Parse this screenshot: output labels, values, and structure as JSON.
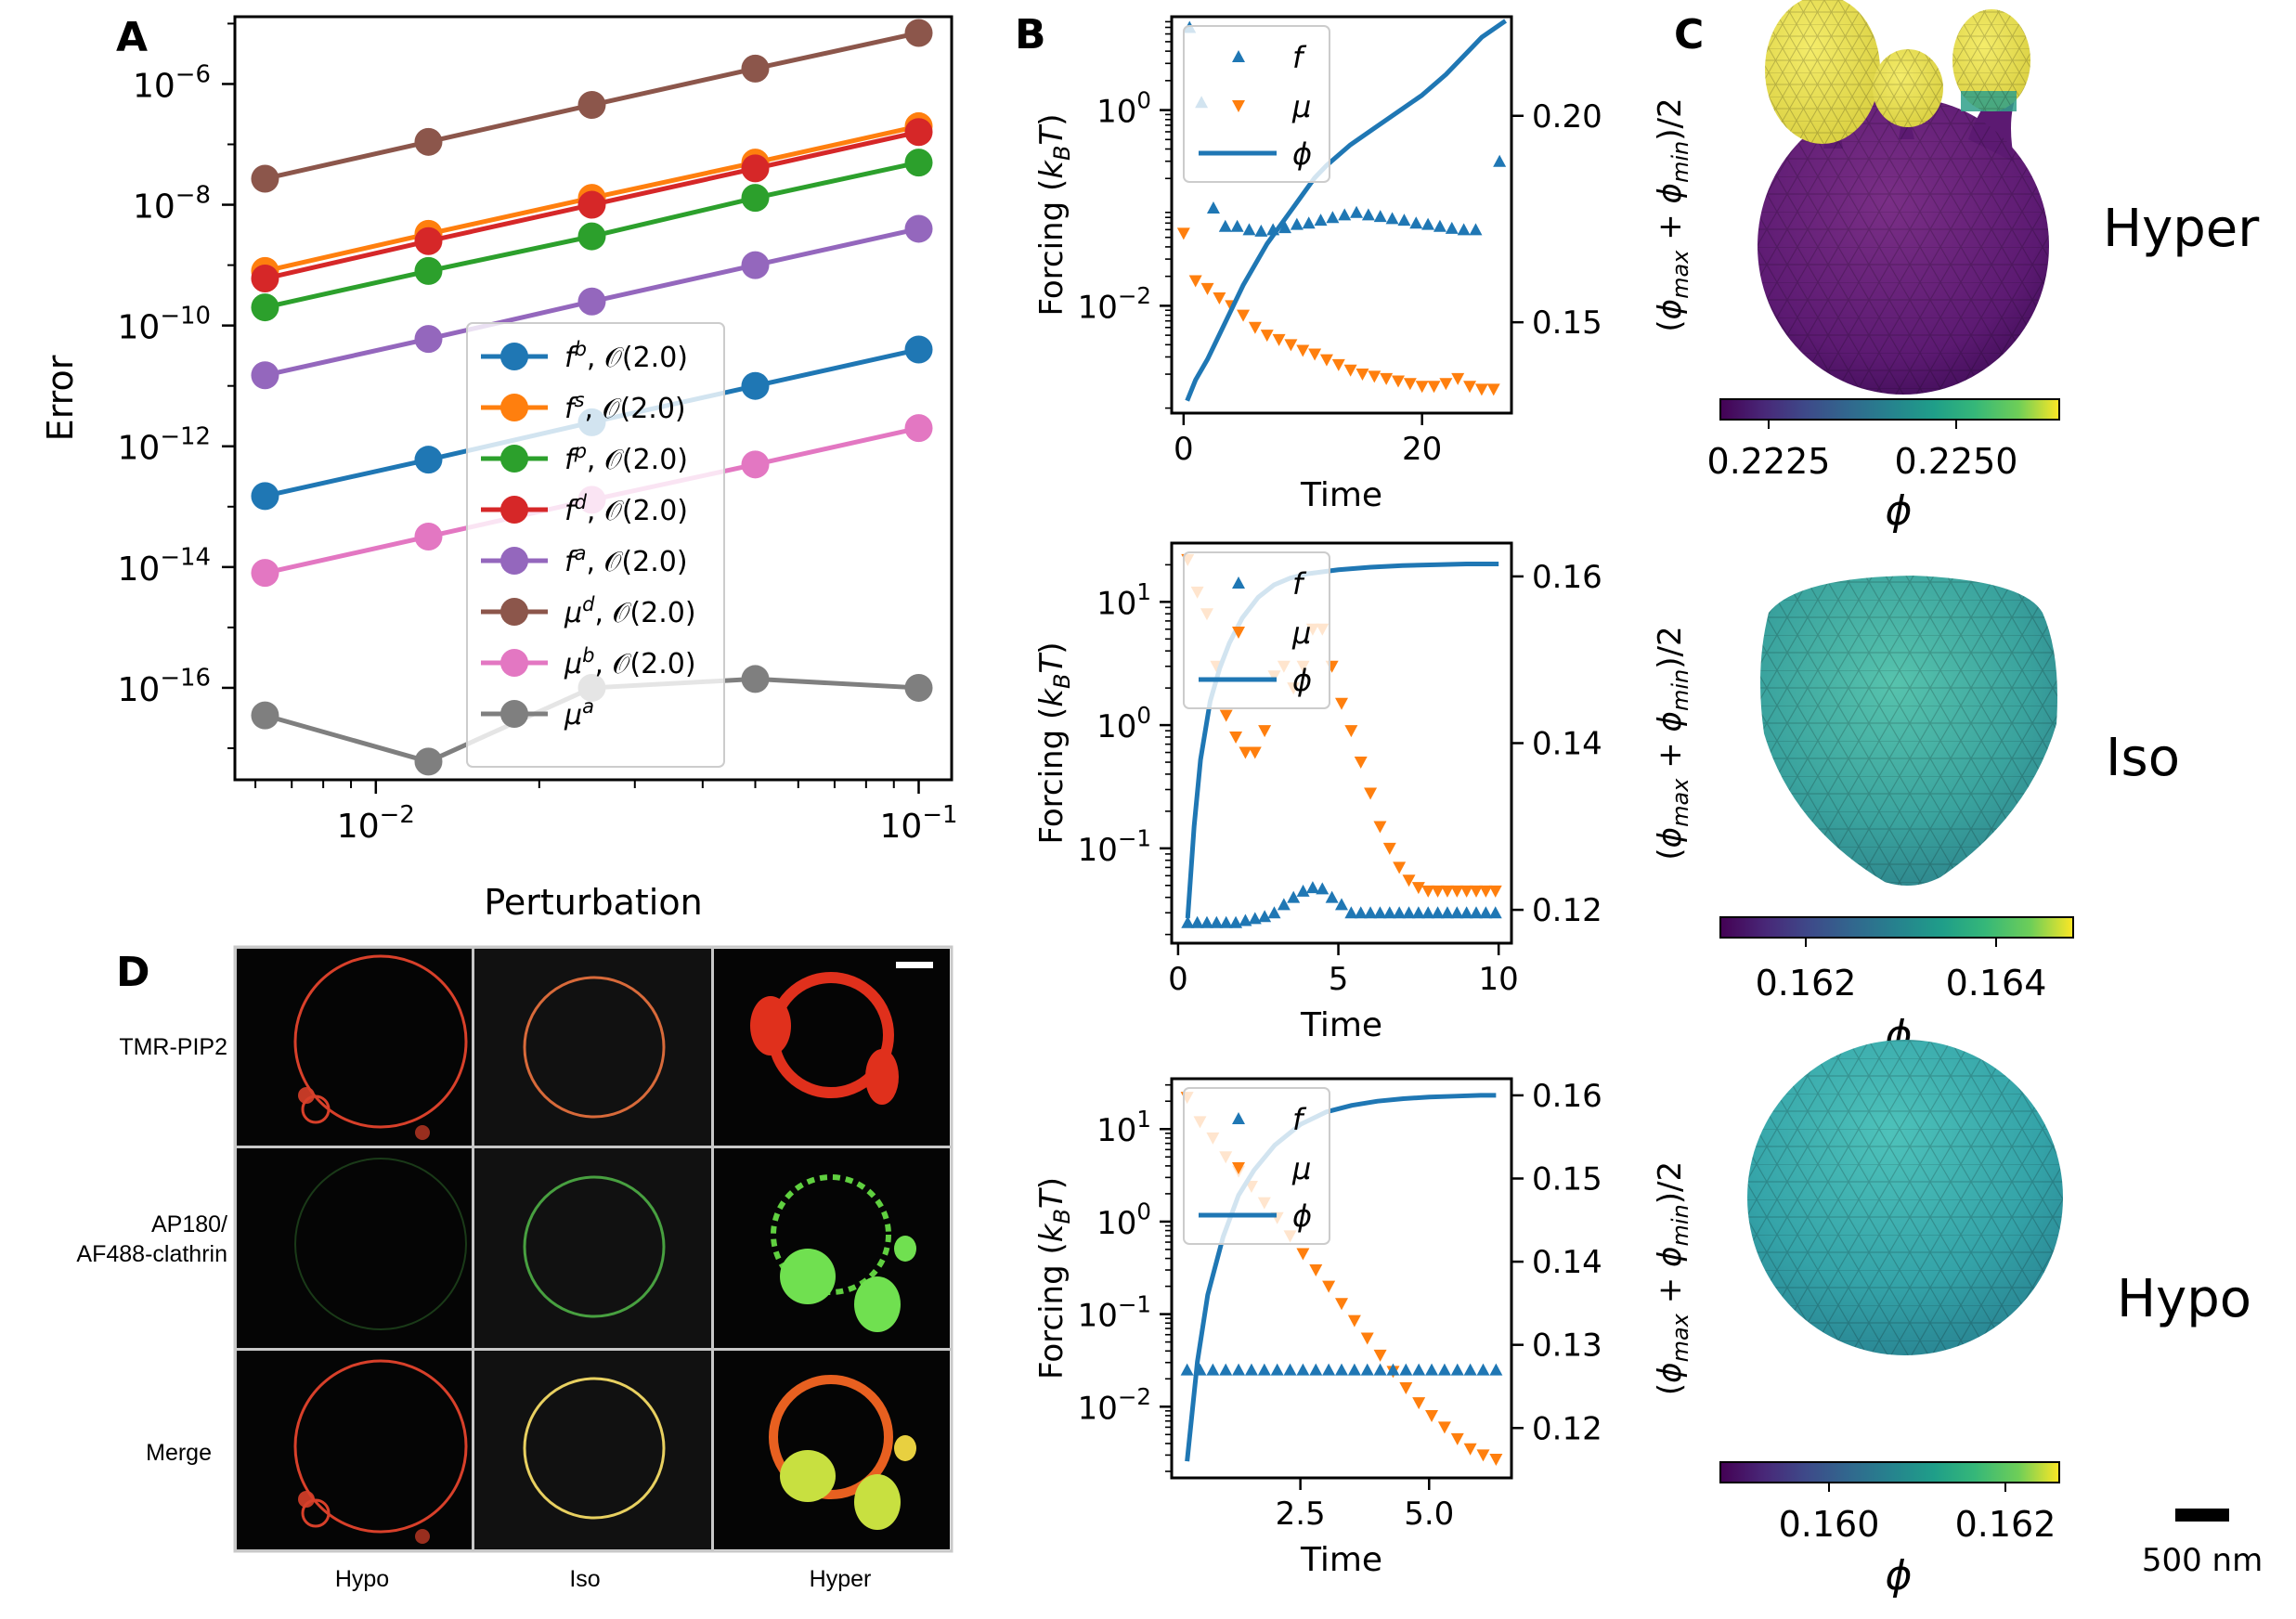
{
  "panel_labels": {
    "A": "A",
    "B": "B",
    "C": "C",
    "D": "D"
  },
  "colors": {
    "blue": "#1f77b4",
    "orange": "#ff7f0e",
    "green": "#2ca02c",
    "red": "#d62728",
    "purple": "#9467bd",
    "brown": "#8c564b",
    "pink": "#e377c2",
    "gray": "#7f7f7f"
  },
  "chart_data": [
    {
      "id": "A",
      "type": "line",
      "scale": "log-log",
      "xlabel": "Perturbation",
      "ylabel": "Error",
      "xlim": [
        0.0055,
        0.115
      ],
      "ylim": [
        3e-18,
        1.3e-05
      ],
      "x": [
        0.00625,
        0.0125,
        0.025,
        0.05,
        0.1
      ],
      "xticks": [
        0.01,
        0.1
      ],
      "xtick_labels": [
        "10^-2",
        "10^-1"
      ],
      "yticks": [
        1e-16,
        1e-14,
        1e-12,
        1e-10,
        1e-08,
        1e-06
      ],
      "ytick_labels": [
        "10^-16",
        "10^-14",
        "10^-12",
        "10^-10",
        "10^-8",
        "10^-6"
      ],
      "legend_position": "center-right",
      "series": [
        {
          "name": "f^b, O(2.0)",
          "sym": "f",
          "sup": "b",
          "order": "𝒪(2.0)",
          "color": "#1f77b4",
          "values": [
            1.5e-13,
            6e-13,
            2.5e-12,
            1e-11,
            4e-11
          ]
        },
        {
          "name": "f^s, O(2.0)",
          "sym": "f",
          "sup": "s",
          "order": "𝒪(2.0)",
          "color": "#ff7f0e",
          "values": [
            8e-10,
            3.3e-09,
            1.3e-08,
            5e-08,
            2e-07
          ]
        },
        {
          "name": "f^p, O(2.0)",
          "sym": "f",
          "sup": "p",
          "order": "𝒪(2.0)",
          "color": "#2ca02c",
          "values": [
            2e-10,
            8e-10,
            3e-09,
            1.3e-08,
            5e-08
          ]
        },
        {
          "name": "f^d, O(2.0)",
          "sym": "f",
          "sup": "d",
          "order": "𝒪(2.0)",
          "color": "#d62728",
          "values": [
            6e-10,
            2.5e-09,
            1e-08,
            4e-08,
            1.6e-07
          ]
        },
        {
          "name": "f^a, O(2.0)",
          "sym": "f",
          "sup": "a",
          "order": "𝒪(2.0)",
          "color": "#9467bd",
          "values": [
            1.5e-11,
            6e-11,
            2.5e-10,
            1e-09,
            4e-09
          ]
        },
        {
          "name": "μ^d, O(2.0)",
          "sym": "μ",
          "sup": "d",
          "order": "𝒪(2.0)",
          "color": "#8c564b",
          "values": [
            2.7e-08,
            1.1e-07,
            4.5e-07,
            1.8e-06,
            7e-06
          ]
        },
        {
          "name": "μ^b, O(2.0)",
          "sym": "μ",
          "sup": "b",
          "order": "𝒪(2.0)",
          "color": "#e377c2",
          "values": [
            8e-15,
            3.2e-14,
            1.3e-13,
            5e-13,
            2e-12
          ]
        },
        {
          "name": "μ^a",
          "sym": "μ",
          "sup": "a",
          "order": "",
          "color": "#7f7f7f",
          "values": [
            3.5e-17,
            6e-18,
            1e-16,
            1.4e-16,
            1e-16
          ]
        }
      ]
    },
    {
      "id": "B1",
      "type": "scatter+line",
      "xlabel": "Time",
      "ylabel": "Forcing (k_BT)",
      "ylabel_right": "(ϕ_max + ϕ_min)/2",
      "xlim": [
        -1,
        27.5
      ],
      "ylim": [
        0.0008,
        9
      ],
      "ylim_right": [
        0.128,
        0.224
      ],
      "xticks": [
        0,
        20
      ],
      "yticks": [
        0.01,
        1
      ],
      "ytick_labels": [
        "10^-2",
        "10^0"
      ],
      "yticks_right": [
        0.15,
        0.2
      ],
      "ytick_labels_right": [
        "0.15",
        "0.20"
      ],
      "legend": [
        "f",
        "μ",
        "ϕ"
      ],
      "f": {
        "x": [
          0.5,
          1.5,
          2.5,
          3.5,
          4.5,
          5.5,
          6.5,
          7.5,
          8.5,
          9.5,
          10.5,
          11.5,
          12.5,
          13.5,
          14.5,
          15.5,
          16.5,
          17.5,
          18.5,
          19.5,
          20.5,
          21.5,
          22.5,
          23.5,
          24.5,
          26.5
        ],
        "y": [
          7,
          1.2,
          0.1,
          0.065,
          0.065,
          0.06,
          0.058,
          0.06,
          0.063,
          0.068,
          0.07,
          0.075,
          0.08,
          0.085,
          0.09,
          0.085,
          0.082,
          0.078,
          0.075,
          0.07,
          0.068,
          0.065,
          0.062,
          0.06,
          0.06,
          0.3
        ]
      },
      "mu": {
        "x": [
          0,
          1,
          2,
          3,
          4,
          5,
          6,
          7,
          8,
          9,
          10,
          11,
          12,
          13,
          14,
          15,
          16,
          17,
          18,
          19,
          20,
          21,
          22,
          23,
          24,
          25,
          26
        ],
        "y": [
          0.055,
          0.018,
          0.015,
          0.012,
          0.01,
          0.008,
          0.006,
          0.005,
          0.0045,
          0.004,
          0.0035,
          0.0032,
          0.0028,
          0.0025,
          0.0022,
          0.002,
          0.0019,
          0.0018,
          0.0017,
          0.0016,
          0.0015,
          0.0015,
          0.0016,
          0.0018,
          0.0015,
          0.0014,
          0.0014
        ]
      },
      "phi": {
        "x": [
          0.3,
          1,
          2,
          3,
          4,
          5,
          6,
          7,
          8,
          9,
          10,
          11,
          12,
          14,
          16,
          18,
          20,
          22,
          24,
          25,
          26,
          27
        ],
        "y": [
          0.131,
          0.136,
          0.141,
          0.147,
          0.153,
          0.159,
          0.164,
          0.169,
          0.173,
          0.177,
          0.181,
          0.185,
          0.188,
          0.193,
          0.197,
          0.201,
          0.205,
          0.21,
          0.216,
          0.219,
          0.221,
          0.223
        ]
      }
    },
    {
      "id": "B2",
      "type": "scatter+line",
      "xlabel": "Time",
      "ylabel": "Forcing (k_BT)",
      "ylabel_right": "(ϕ_max + ϕ_min)/2",
      "xlim": [
        -0.2,
        10.4
      ],
      "ylim": [
        0.017,
        30
      ],
      "ylim_right": [
        0.116,
        0.164
      ],
      "xticks": [
        0,
        5,
        10
      ],
      "yticks": [
        0.1,
        1,
        10
      ],
      "ytick_labels": [
        "10^-1",
        "10^0",
        "10^1"
      ],
      "yticks_right": [
        0.12,
        0.14,
        0.16
      ],
      "ytick_labels_right": [
        "0.12",
        "0.14",
        "0.16"
      ],
      "legend": [
        "f",
        "μ",
        "ϕ"
      ],
      "f": {
        "x": [
          0.3,
          0.6,
          0.9,
          1.2,
          1.5,
          1.8,
          2.1,
          2.4,
          2.7,
          3.0,
          3.3,
          3.6,
          3.9,
          4.2,
          4.5,
          4.8,
          5.1,
          5.4,
          5.7,
          6.0,
          6.3,
          6.6,
          6.9,
          7.2,
          7.5,
          7.8,
          8.1,
          8.4,
          8.7,
          9.0,
          9.3,
          9.6,
          9.9
        ],
        "y": [
          0.025,
          0.025,
          0.025,
          0.025,
          0.025,
          0.025,
          0.026,
          0.027,
          0.028,
          0.03,
          0.035,
          0.04,
          0.045,
          0.048,
          0.047,
          0.04,
          0.035,
          0.03,
          0.03,
          0.03,
          0.03,
          0.03,
          0.03,
          0.03,
          0.03,
          0.03,
          0.03,
          0.03,
          0.03,
          0.03,
          0.03,
          0.03,
          0.03
        ]
      },
      "mu": {
        "x": [
          0.3,
          0.6,
          0.9,
          1.2,
          1.5,
          1.8,
          2.1,
          2.4,
          2.7,
          3.0,
          3.3,
          3.6,
          3.9,
          4.2,
          4.5,
          4.8,
          5.1,
          5.4,
          5.7,
          6.0,
          6.3,
          6.6,
          6.9,
          7.2,
          7.5,
          7.8,
          8.1,
          8.4,
          8.7,
          9.0,
          9.3,
          9.6,
          9.9
        ],
        "y": [
          22,
          12,
          8,
          3,
          1.2,
          0.8,
          0.6,
          0.6,
          0.9,
          2.5,
          3,
          2,
          3,
          6,
          6,
          3,
          1.5,
          0.9,
          0.5,
          0.28,
          0.15,
          0.1,
          0.07,
          0.055,
          0.048,
          0.045,
          0.045,
          0.045,
          0.045,
          0.045,
          0.045,
          0.045,
          0.045
        ]
      },
      "phi": {
        "x": [
          0.3,
          0.5,
          0.7,
          1,
          1.3,
          1.6,
          2,
          2.5,
          3,
          3.5,
          4,
          5,
          6,
          7,
          8,
          9,
          10
        ],
        "y": [
          0.119,
          0.13,
          0.138,
          0.145,
          0.149,
          0.152,
          0.155,
          0.1575,
          0.159,
          0.1598,
          0.1603,
          0.1608,
          0.1611,
          0.1613,
          0.1614,
          0.1615,
          0.1615
        ]
      }
    },
    {
      "id": "B3",
      "type": "scatter+line",
      "xlabel": "Time",
      "ylabel": "Forcing (k_BT)",
      "ylabel_right": "(ϕ_max + ϕ_min)/2",
      "xlim": [
        0,
        6.6
      ],
      "ylim": [
        0.0017,
        35
      ],
      "ylim_right": [
        0.114,
        0.162
      ],
      "xticks": [
        2.5,
        5.0
      ],
      "xtick_labels": [
        "2.5",
        "5.0"
      ],
      "yticks": [
        0.01,
        0.1,
        1,
        10
      ],
      "ytick_labels": [
        "10^-2",
        "10^-1",
        "10^0",
        "10^1"
      ],
      "yticks_right": [
        0.12,
        0.13,
        0.14,
        0.15,
        0.16
      ],
      "ytick_labels_right": [
        "0.12",
        "0.13",
        "0.14",
        "0.15",
        "0.16"
      ],
      "legend": [
        "f",
        "μ",
        "ϕ"
      ],
      "f": {
        "x": [
          0.3,
          0.55,
          0.8,
          1.05,
          1.3,
          1.55,
          1.8,
          2.05,
          2.3,
          2.55,
          2.8,
          3.05,
          3.3,
          3.55,
          3.8,
          4.05,
          4.3,
          4.55,
          4.8,
          5.05,
          5.3,
          5.55,
          5.8,
          6.05,
          6.3
        ],
        "y": [
          0.025,
          0.025,
          0.025,
          0.025,
          0.025,
          0.025,
          0.025,
          0.025,
          0.025,
          0.025,
          0.025,
          0.025,
          0.025,
          0.025,
          0.025,
          0.025,
          0.025,
          0.025,
          0.025,
          0.025,
          0.025,
          0.025,
          0.025,
          0.025,
          0.025
        ]
      },
      "mu": {
        "x": [
          0.3,
          0.55,
          0.8,
          1.05,
          1.3,
          1.55,
          1.8,
          2.05,
          2.3,
          2.55,
          2.8,
          3.05,
          3.3,
          3.55,
          3.8,
          4.05,
          4.3,
          4.55,
          4.8,
          5.05,
          5.3,
          5.55,
          5.8,
          6.05,
          6.3
        ],
        "y": [
          22,
          12,
          8,
          5,
          3.5,
          2.4,
          1.6,
          1.1,
          0.7,
          0.45,
          0.3,
          0.2,
          0.13,
          0.085,
          0.055,
          0.036,
          0.024,
          0.016,
          0.011,
          0.008,
          0.006,
          0.0045,
          0.0035,
          0.003,
          0.0027
        ]
      },
      "phi": {
        "x": [
          0.3,
          0.5,
          0.7,
          1,
          1.3,
          1.6,
          2,
          2.5,
          3,
          3.5,
          4,
          4.5,
          5,
          5.5,
          6,
          6.3
        ],
        "y": [
          0.116,
          0.128,
          0.136,
          0.143,
          0.148,
          0.151,
          0.154,
          0.1565,
          0.158,
          0.1588,
          0.1593,
          0.1596,
          0.1598,
          0.1599,
          0.16,
          0.16
        ]
      }
    }
  ],
  "panel_c": {
    "rows": [
      {
        "label": "Hyper",
        "colorbar_ticks": [
          "0.2225",
          "0.2250"
        ],
        "colorbar_label": "ϕ"
      },
      {
        "label": "Iso",
        "colorbar_ticks": [
          "0.162",
          "0.164"
        ],
        "colorbar_label": "ϕ"
      },
      {
        "label": "Hypo",
        "colorbar_ticks": [
          "0.160",
          "0.162"
        ],
        "colorbar_label": "ϕ"
      }
    ],
    "scale_bar": "500 nm"
  },
  "panel_d": {
    "row_labels": [
      "TMR-PIP2",
      "AP180/",
      "AF488-clathrin",
      "Merge"
    ],
    "col_labels": [
      "Hypo",
      "Iso",
      "Hyper"
    ]
  }
}
